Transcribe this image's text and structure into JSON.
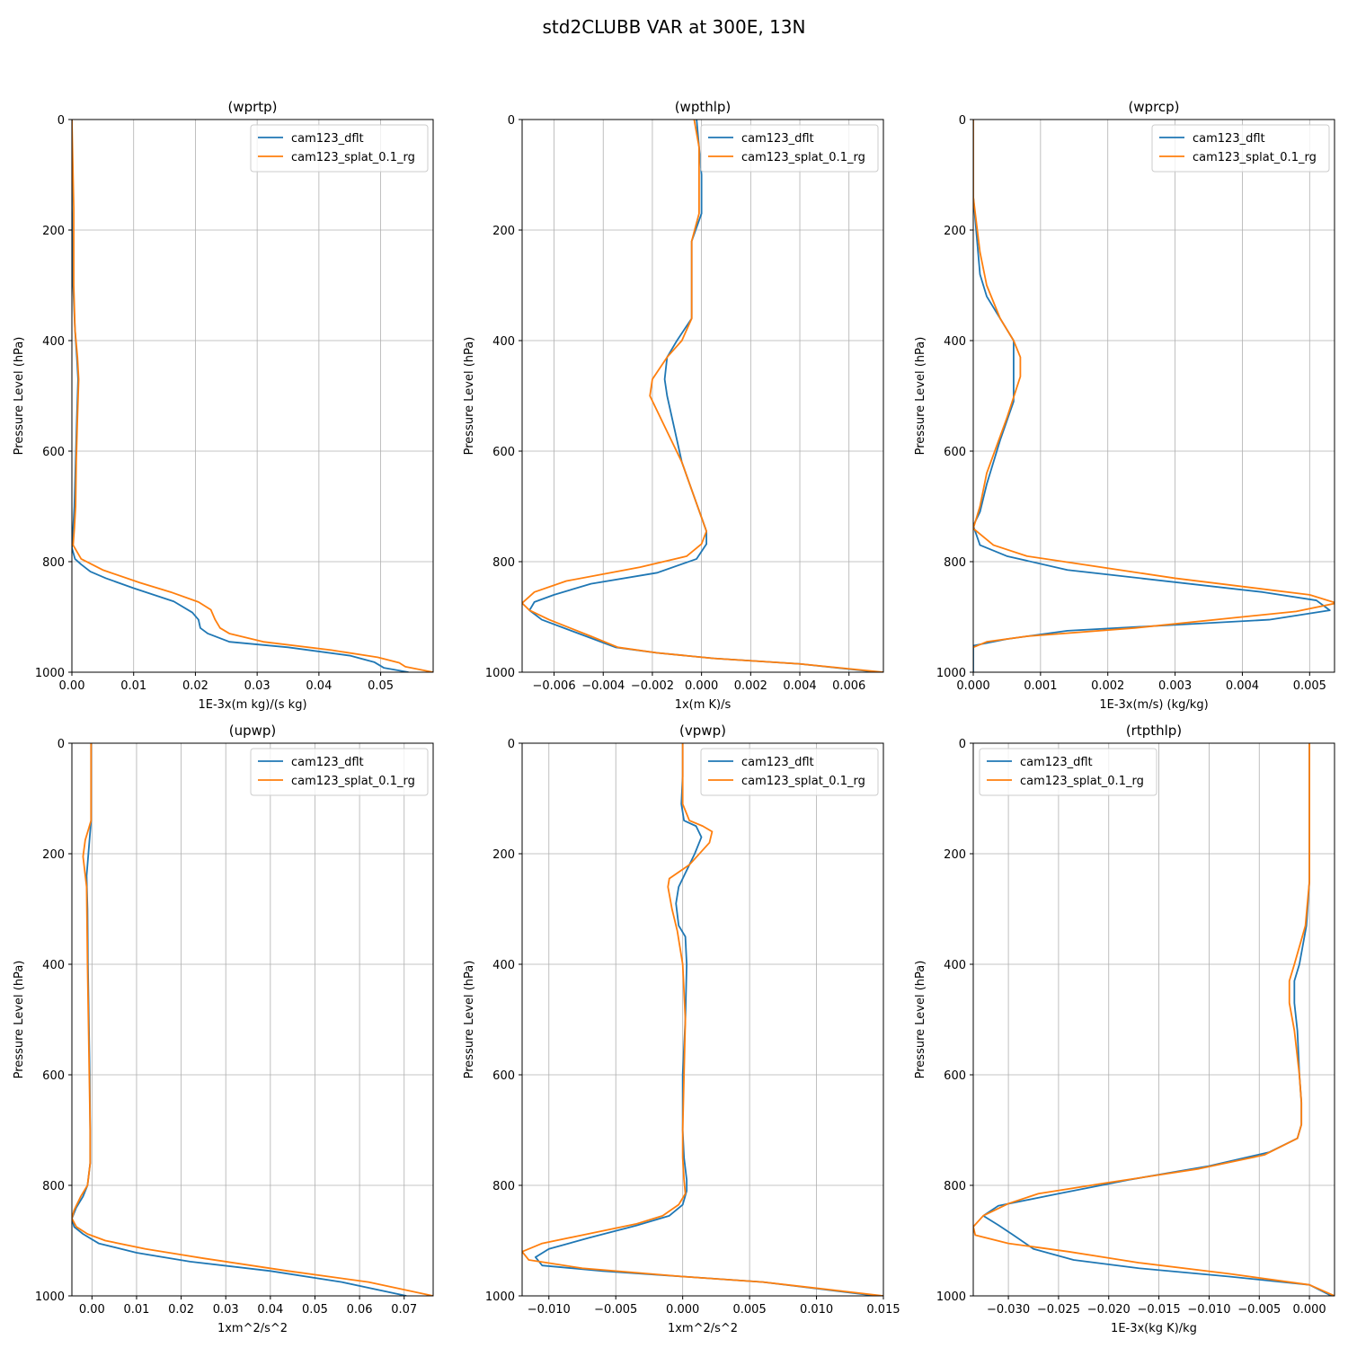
{
  "suptitle": "std2CLUBB VAR at 300E, 13N",
  "colors": {
    "series_0": "#1f77b4",
    "series_1": "#ff7f0e",
    "grid": "#b0b0b0",
    "legend_border": "#cccccc"
  },
  "chart_data": [
    {
      "type": "line",
      "title": "(wprtp)",
      "xlabel": "1E-3x(m kg)/(s kg)",
      "ylabel": "Pressure Level (hPa)",
      "xlim": [
        0,
        0.0585
      ],
      "ylim": [
        1000,
        0
      ],
      "xticks": [
        0,
        0.01,
        0.02,
        0.03,
        0.04,
        0.05
      ],
      "xtick_labels": [
        "0.00",
        "0.01",
        "0.02",
        "0.03",
        "0.04",
        "0.05"
      ],
      "yticks": [
        0,
        200,
        400,
        600,
        800,
        1000
      ],
      "ytick_labels": [
        "0",
        "200",
        "400",
        "600",
        "800",
        "1000"
      ],
      "legend": {
        "loc": "upper right",
        "entries": [
          "cam123_dflt",
          "cam123_splat_0.1_rg"
        ]
      },
      "grid": true,
      "series": [
        {
          "name": "cam123_dflt",
          "x": [
            0.0,
            0.0,
            0.0002,
            0.0005,
            0.0008,
            0.001,
            0.0008,
            0.0006,
            0.0004,
            0.0002,
            0.0,
            0.0005,
            0.0015,
            0.003,
            0.0055,
            0.01,
            0.0165,
            0.0195,
            0.0205,
            0.0208,
            0.022,
            0.0255,
            0.035,
            0.045,
            0.049,
            0.0505,
            0.0545
          ],
          "y": [
            0,
            160,
            300,
            380,
            430,
            470,
            540,
            620,
            700,
            740,
            775,
            795,
            805,
            818,
            830,
            848,
            872,
            892,
            905,
            920,
            930,
            945,
            955,
            970,
            982,
            992,
            1000
          ]
        },
        {
          "name": "cam123_splat_0.1_rg",
          "x": [
            0.0,
            0.0003,
            0.0003,
            0.0005,
            0.0009,
            0.0011,
            0.0009,
            0.0007,
            0.0006,
            0.0004,
            0.0002,
            0.0015,
            0.005,
            0.011,
            0.016,
            0.0205,
            0.0225,
            0.0232,
            0.024,
            0.0255,
            0.031,
            0.042,
            0.0495,
            0.053,
            0.054,
            0.0585
          ],
          "y": [
            0,
            160,
            300,
            380,
            430,
            470,
            540,
            620,
            700,
            740,
            770,
            795,
            815,
            838,
            855,
            873,
            887,
            905,
            920,
            930,
            945,
            960,
            973,
            983,
            990,
            1000
          ]
        }
      ]
    },
    {
      "type": "line",
      "title": "(wpthlp)",
      "xlabel": "1x(m K)/s",
      "ylabel": "Pressure Level (hPa)",
      "xlim": [
        -0.0073,
        0.0074
      ],
      "ylim": [
        1000,
        0
      ],
      "xticks": [
        -0.006,
        -0.004,
        -0.002,
        0,
        0.002,
        0.004,
        0.006
      ],
      "xtick_labels": [
        "−0.006",
        "−0.004",
        "−0.002",
        "0.000",
        "0.002",
        "0.004",
        "0.006"
      ],
      "yticks": [
        0,
        200,
        400,
        600,
        800,
        1000
      ],
      "ytick_labels": [
        "0",
        "200",
        "400",
        "600",
        "800",
        "1000"
      ],
      "legend": {
        "loc": "upper right",
        "entries": [
          "cam123_dflt",
          "cam123_splat_0.1_rg"
        ]
      },
      "grid": true,
      "series": [
        {
          "name": "cam123_dflt",
          "x": [
            -0.0002,
            -0.0001,
            0.0,
            0.0,
            -0.0004,
            -0.0004,
            -0.0004,
            -0.0004,
            -0.001,
            -0.0014,
            -0.0015,
            -0.0014,
            -0.0008,
            0.0,
            0.0002,
            0.0002,
            -0.0002,
            -0.0018,
            -0.0045,
            -0.006,
            -0.0068,
            -0.007,
            -0.0065,
            -0.0047,
            -0.0035,
            -0.0018,
            0.0005,
            0.004,
            0.0072
          ],
          "y": [
            0,
            50,
            100,
            170,
            220,
            260,
            320,
            360,
            400,
            430,
            470,
            500,
            620,
            720,
            745,
            768,
            795,
            820,
            840,
            860,
            873,
            888,
            905,
            935,
            955,
            965,
            975,
            985,
            1000
          ]
        },
        {
          "name": "cam123_splat_0.1_rg",
          "x": [
            -0.0003,
            -0.0001,
            -0.0001,
            -0.0001,
            -0.0004,
            -0.0004,
            -0.0004,
            -0.0004,
            -0.0008,
            -0.0014,
            -0.002,
            -0.0021,
            -0.0008,
            0.0,
            0.0002,
            0.0,
            -0.0006,
            -0.0025,
            -0.0055,
            -0.0068,
            -0.0073,
            -0.007,
            -0.0062,
            -0.0045,
            -0.0034,
            -0.0018,
            0.0005,
            0.004,
            0.0074
          ],
          "y": [
            0,
            50,
            100,
            170,
            220,
            260,
            320,
            360,
            400,
            430,
            470,
            500,
            620,
            720,
            745,
            768,
            790,
            810,
            835,
            855,
            875,
            888,
            905,
            935,
            955,
            965,
            975,
            985,
            1000
          ]
        }
      ]
    },
    {
      "type": "line",
      "title": "(wprcp)",
      "xlabel": "1E-3x(m/s) (kg/kg)",
      "ylabel": "Pressure Level (hPa)",
      "xlim": [
        0,
        0.00537
      ],
      "ylim": [
        1000,
        0
      ],
      "xticks": [
        0,
        0.001,
        0.002,
        0.003,
        0.004,
        0.005
      ],
      "xtick_labels": [
        "0.000",
        "0.001",
        "0.002",
        "0.003",
        "0.004",
        "0.005"
      ],
      "yticks": [
        0,
        200,
        400,
        600,
        800,
        1000
      ],
      "ytick_labels": [
        "0",
        "200",
        "400",
        "600",
        "800",
        "1000"
      ],
      "legend": {
        "loc": "upper right",
        "entries": [
          "cam123_dflt",
          "cam123_splat_0.1_rg"
        ]
      },
      "grid": true,
      "series": [
        {
          "name": "cam123_dflt",
          "x": [
            0.0,
            0.0,
            0.0001,
            0.0002,
            0.0004,
            0.0005,
            0.0006,
            0.0006,
            0.0006,
            0.0004,
            0.0002,
            0.0001,
            0.0,
            0.0001,
            0.0005,
            0.0014,
            0.0043,
            0.0051,
            0.0053,
            0.0044,
            0.0014,
            0.0005,
            0.0,
            0.0
          ],
          "y": [
            0,
            140,
            280,
            320,
            360,
            380,
            400,
            440,
            510,
            580,
            660,
            710,
            735,
            770,
            790,
            815,
            855,
            870,
            888,
            905,
            925,
            940,
            952,
            1000
          ]
        },
        {
          "name": "cam123_splat_0.1_rg",
          "x": [
            0.0,
            0.0,
            0.0001,
            0.0002,
            0.0004,
            0.0006,
            0.0007,
            0.0007,
            0.0005,
            0.0002,
            0.0001,
            0.0,
            0.0003,
            0.0008,
            0.003,
            0.005,
            0.0054,
            0.0048,
            0.0024,
            0.0008,
            0.0002,
            0.0
          ],
          "y": [
            0,
            140,
            240,
            300,
            360,
            400,
            430,
            465,
            540,
            640,
            700,
            740,
            770,
            790,
            830,
            860,
            875,
            890,
            920,
            935,
            945,
            955
          ]
        }
      ]
    },
    {
      "type": "line",
      "title": "(upwp)",
      "xlabel": "1xm^2/s^2",
      "ylabel": "Pressure Level (hPa)",
      "xlim": [
        -0.0045,
        0.0765
      ],
      "ylim": [
        1000,
        0
      ],
      "xticks": [
        0,
        0.01,
        0.02,
        0.03,
        0.04,
        0.05,
        0.06,
        0.07
      ],
      "xtick_labels": [
        "0.00",
        "0.01",
        "0.02",
        "0.03",
        "0.04",
        "0.05",
        "0.06",
        "0.07"
      ],
      "yticks": [
        0,
        200,
        400,
        600,
        800,
        1000
      ],
      "ytick_labels": [
        "0",
        "200",
        "400",
        "600",
        "800",
        "1000"
      ],
      "legend": {
        "loc": "upper right",
        "entries": [
          "cam123_dflt",
          "cam123_splat_0.1_rg"
        ]
      },
      "grid": true,
      "series": [
        {
          "name": "cam123_dflt",
          "x": [
            -0.0002,
            -0.0002,
            -0.0002,
            -0.0008,
            -0.0012,
            -0.001,
            -0.0009,
            -0.0007,
            -0.0005,
            -0.0004,
            -0.0004,
            -0.001,
            -0.002,
            -0.0035,
            -0.0045,
            -0.004,
            -0.002,
            0.0015,
            0.01,
            0.022,
            0.04,
            0.056,
            0.0705
          ],
          "y": [
            0,
            100,
            140,
            200,
            240,
            300,
            400,
            500,
            600,
            700,
            760,
            800,
            820,
            840,
            860,
            875,
            888,
            905,
            922,
            938,
            955,
            975,
            1000
          ]
        },
        {
          "name": "cam123_splat_0.1_rg",
          "x": [
            -0.0002,
            -0.0002,
            -0.0002,
            -0.0015,
            -0.002,
            -0.0012,
            -0.001,
            -0.0008,
            -0.0006,
            -0.0004,
            -0.0004,
            -0.001,
            -0.0025,
            -0.004,
            -0.0045,
            -0.0035,
            -0.001,
            0.003,
            0.012,
            0.025,
            0.044,
            0.062,
            0.0765
          ],
          "y": [
            0,
            100,
            140,
            175,
            205,
            260,
            400,
            500,
            600,
            700,
            760,
            800,
            820,
            845,
            860,
            875,
            888,
            900,
            915,
            932,
            955,
            975,
            1000
          ]
        }
      ]
    },
    {
      "type": "line",
      "title": "(vpwp)",
      "xlabel": "1xm^2/s^2",
      "ylabel": "Pressure Level (hPa)",
      "xlim": [
        -0.012,
        0.015
      ],
      "ylim": [
        1000,
        0
      ],
      "xticks": [
        -0.01,
        -0.005,
        0,
        0.005,
        0.01,
        0.015
      ],
      "xtick_labels": [
        "−0.010",
        "−0.005",
        "0.000",
        "0.005",
        "0.010",
        "0.015"
      ],
      "yticks": [
        0,
        200,
        400,
        600,
        800,
        1000
      ],
      "ytick_labels": [
        "0",
        "200",
        "400",
        "600",
        "800",
        "1000"
      ],
      "legend": {
        "loc": "upper right",
        "entries": [
          "cam123_dflt",
          "cam123_splat_0.1_rg"
        ]
      },
      "grid": true,
      "series": [
        {
          "name": "cam123_dflt",
          "x": [
            0.0,
            0.0,
            -0.0001,
            0.0001,
            0.001,
            0.0014,
            0.0009,
            0.0003,
            -0.0003,
            -0.0005,
            -0.0003,
            0.0002,
            0.0003,
            0.0002,
            0.0,
            0.0,
            0.0001,
            0.0003,
            0.0003,
            0.0,
            -0.001,
            -0.0035,
            -0.007,
            -0.01,
            -0.011,
            -0.0105,
            -0.006,
            0.0,
            0.006,
            0.0145
          ],
          "y": [
            0,
            60,
            110,
            140,
            150,
            170,
            200,
            230,
            260,
            290,
            330,
            350,
            400,
            500,
            600,
            700,
            750,
            790,
            810,
            835,
            855,
            873,
            895,
            915,
            930,
            945,
            955,
            965,
            975,
            1000
          ]
        },
        {
          "name": "cam123_splat_0.1_rg",
          "x": [
            0.0,
            0.0,
            0.0,
            0.0005,
            0.0015,
            0.0022,
            0.002,
            0.0005,
            -0.001,
            -0.0011,
            -0.0008,
            -0.0004,
            0.0,
            0.0002,
            0.0001,
            0.0,
            0.0,
            0.0001,
            0.0002,
            -0.0003,
            -0.0015,
            -0.0035,
            -0.0075,
            -0.0105,
            -0.012,
            -0.0115,
            -0.0075,
            0.0,
            0.006,
            0.015
          ],
          "y": [
            0,
            60,
            110,
            140,
            150,
            160,
            180,
            220,
            245,
            260,
            300,
            340,
            400,
            500,
            600,
            700,
            750,
            790,
            815,
            835,
            855,
            870,
            890,
            905,
            920,
            935,
            950,
            965,
            975,
            1000
          ]
        }
      ]
    },
    {
      "type": "line",
      "title": "(rtpthlp)",
      "xlabel": "1E-3x(kg K)/kg",
      "ylabel": "Pressure Level (hPa)",
      "xlim": [
        -0.0335,
        0.0025
      ],
      "ylim": [
        1000,
        0
      ],
      "xticks": [
        -0.03,
        -0.025,
        -0.02,
        -0.015,
        -0.01,
        -0.005,
        0
      ],
      "xtick_labels": [
        "−0.030",
        "−0.025",
        "−0.020",
        "−0.015",
        "−0.010",
        "−0.005",
        "0.000"
      ],
      "yticks": [
        0,
        200,
        400,
        600,
        800,
        1000
      ],
      "ytick_labels": [
        "0",
        "200",
        "400",
        "600",
        "800",
        "1000"
      ],
      "legend": {
        "loc": "upper left",
        "entries": [
          "cam123_dflt",
          "cam123_splat_0.1_rg"
        ]
      },
      "grid": true,
      "series": [
        {
          "name": "cam123_dflt",
          "x": [
            0.0,
            0.0,
            0.0,
            -0.0003,
            -0.001,
            -0.0015,
            -0.0015,
            -0.0012,
            -0.001,
            -0.0008,
            -0.0008,
            -0.0012,
            -0.004,
            -0.01,
            -0.018,
            -0.025,
            -0.031,
            -0.0325,
            -0.031,
            -0.0295,
            -0.0275,
            -0.0235,
            -0.017,
            -0.008,
            0.0,
            0.0022
          ],
          "y": [
            0,
            150,
            250,
            330,
            400,
            430,
            470,
            520,
            600,
            650,
            690,
            715,
            740,
            765,
            790,
            815,
            837,
            855,
            872,
            890,
            915,
            935,
            950,
            965,
            980,
            1000
          ]
        },
        {
          "name": "cam123_splat_0.1_rg",
          "x": [
            0.0,
            0.0,
            0.0,
            -0.0004,
            -0.0015,
            -0.002,
            -0.002,
            -0.0015,
            -0.001,
            -0.0008,
            -0.0008,
            -0.0012,
            -0.0045,
            -0.011,
            -0.02,
            -0.027,
            -0.03,
            -0.0325,
            -0.0335,
            -0.0333,
            -0.03,
            -0.024,
            -0.017,
            -0.008,
            0.0,
            0.0025
          ],
          "y": [
            0,
            150,
            250,
            330,
            400,
            430,
            470,
            520,
            600,
            650,
            690,
            715,
            745,
            770,
            795,
            815,
            833,
            855,
            875,
            890,
            905,
            920,
            940,
            960,
            980,
            1000
          ]
        }
      ]
    }
  ]
}
